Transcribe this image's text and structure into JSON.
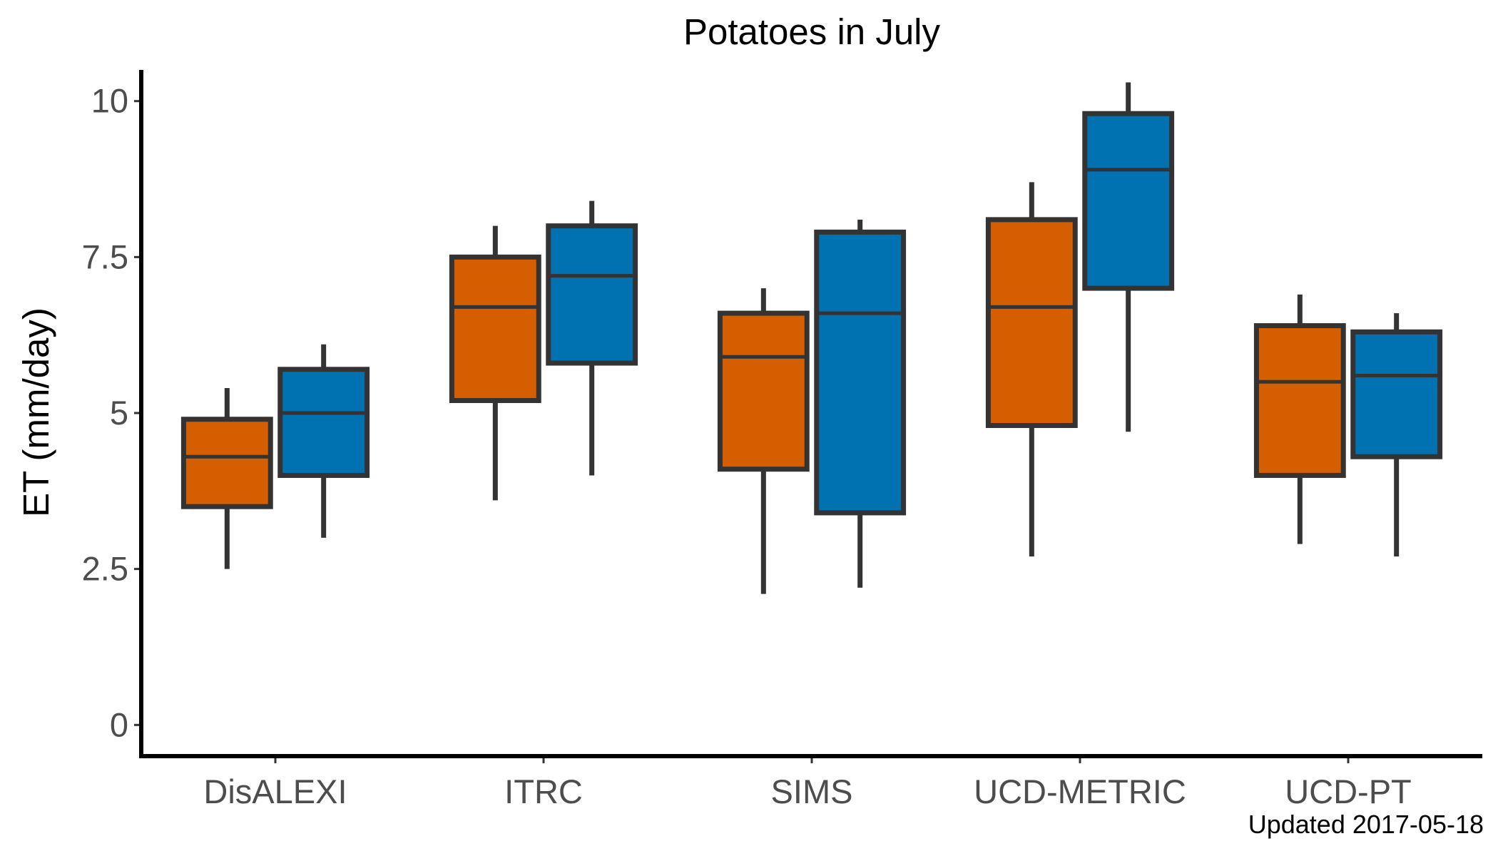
{
  "chart_data": {
    "type": "box",
    "title": "Potatoes in July",
    "xlabel": "",
    "ylabel": "ET (mm/day)",
    "ylim": [
      -0.5,
      10.5
    ],
    "yticks": [
      0,
      2.5,
      5,
      7.5,
      10
    ],
    "ytick_labels": [
      "0",
      "2.5",
      "5",
      "7.5",
      "10"
    ],
    "grid": false,
    "legend": "none",
    "categories": [
      "DisALEXI",
      "ITRC",
      "SIMS",
      "UCD-METRIC",
      "UCD-PT"
    ],
    "series": [
      {
        "color": "#d55e00",
        "boxes": [
          {
            "whisker_low": 2.5,
            "q1": 3.5,
            "median": 4.3,
            "q3": 4.9,
            "whisker_high": 5.4
          },
          {
            "whisker_low": 3.6,
            "q1": 5.2,
            "median": 6.7,
            "q3": 7.5,
            "whisker_high": 8.0
          },
          {
            "whisker_low": 2.1,
            "q1": 4.1,
            "median": 5.9,
            "q3": 6.6,
            "whisker_high": 7.0
          },
          {
            "whisker_low": 2.7,
            "q1": 4.8,
            "median": 6.7,
            "q3": 8.1,
            "whisker_high": 8.7
          },
          {
            "whisker_low": 2.9,
            "q1": 4.0,
            "median": 5.5,
            "q3": 6.4,
            "whisker_high": 6.9
          }
        ]
      },
      {
        "color": "#0072b2",
        "boxes": [
          {
            "whisker_low": 3.0,
            "q1": 4.0,
            "median": 5.0,
            "q3": 5.7,
            "whisker_high": 6.1
          },
          {
            "whisker_low": 4.0,
            "q1": 5.8,
            "median": 7.2,
            "q3": 8.0,
            "whisker_high": 8.4
          },
          {
            "whisker_low": 2.2,
            "q1": 3.4,
            "median": 6.6,
            "q3": 7.9,
            "whisker_high": 8.1
          },
          {
            "whisker_low": 4.7,
            "q1": 7.0,
            "median": 8.9,
            "q3": 9.8,
            "whisker_high": 10.3
          },
          {
            "whisker_low": 2.7,
            "q1": 4.3,
            "median": 5.6,
            "q3": 6.3,
            "whisker_high": 6.6
          }
        ]
      }
    ],
    "caption": "Updated  2017-05-18"
  }
}
